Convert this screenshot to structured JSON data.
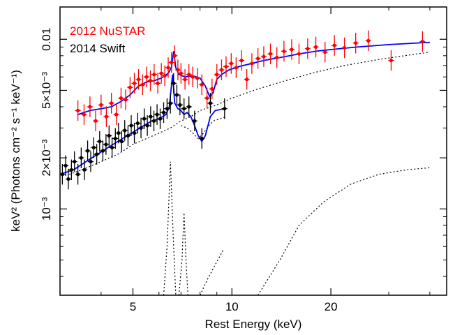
{
  "chart_data": {
    "type": "scatter",
    "title": "",
    "xlabel": "Rest Energy (keV)",
    "ylabel": "keV² (Photons cm⁻² s⁻¹ keV⁻¹)",
    "x_scale": "log",
    "y_scale": "log",
    "xlim": [
      3.0,
      45.0
    ],
    "ylim": [
      0.00031,
      0.0155
    ],
    "x_ticks": [
      {
        "value": 5,
        "label": "5"
      },
      {
        "value": 10,
        "label": "10"
      },
      {
        "value": 20,
        "label": "20"
      }
    ],
    "y_ticks": [
      {
        "value": 0.001,
        "label": "10⁻³"
      },
      {
        "value": 0.002,
        "label": "2×10⁻³"
      },
      {
        "value": 0.005,
        "label": "5×10⁻³"
      },
      {
        "value": 0.01,
        "label": "0.01"
      }
    ],
    "legend": {
      "placement": "top-left",
      "entries": [
        {
          "label": "2012 NuSTAR",
          "color": "#ff0000"
        },
        {
          "label": "2014 Swift",
          "color": "#000000"
        }
      ]
    },
    "series": [
      {
        "name": "2012 NuSTAR",
        "color": "#ff0000",
        "kind": "data",
        "points": [
          [
            3.4,
            0.0038
          ],
          [
            3.55,
            0.0036
          ],
          [
            3.7,
            0.004
          ],
          [
            3.85,
            0.0033
          ],
          [
            4.0,
            0.0041
          ],
          [
            4.15,
            0.0035
          ],
          [
            4.3,
            0.0042
          ],
          [
            4.45,
            0.0036
          ],
          [
            4.6,
            0.0045
          ],
          [
            4.75,
            0.0044
          ],
          [
            4.9,
            0.0052
          ],
          [
            5.05,
            0.0055
          ],
          [
            5.2,
            0.0058
          ],
          [
            5.35,
            0.0054
          ],
          [
            5.5,
            0.006
          ],
          [
            5.65,
            0.0057
          ],
          [
            5.8,
            0.0062
          ],
          [
            5.95,
            0.0055
          ],
          [
            6.1,
            0.0063
          ],
          [
            6.25,
            0.0061
          ],
          [
            6.4,
            0.0068
          ],
          [
            6.55,
            0.0073
          ],
          [
            6.7,
            0.008
          ],
          [
            6.85,
            0.0066
          ],
          [
            7.0,
            0.0063
          ],
          [
            7.2,
            0.0058
          ],
          [
            7.4,
            0.0062
          ],
          [
            7.6,
            0.006
          ],
          [
            7.85,
            0.0059
          ],
          [
            8.1,
            0.0054
          ],
          [
            8.4,
            0.0045
          ],
          [
            8.7,
            0.0051
          ],
          [
            9.0,
            0.0062
          ],
          [
            9.3,
            0.0066
          ],
          [
            9.6,
            0.0069
          ],
          [
            9.95,
            0.0072
          ],
          [
            10.3,
            0.0068
          ],
          [
            10.7,
            0.0075
          ],
          [
            11.1,
            0.0058
          ],
          [
            11.5,
            0.0072
          ],
          [
            12.0,
            0.0077
          ],
          [
            12.5,
            0.0079
          ],
          [
            13.1,
            0.0082
          ],
          [
            13.7,
            0.0078
          ],
          [
            14.4,
            0.0085
          ],
          [
            15.2,
            0.0087
          ],
          [
            16.0,
            0.0082
          ],
          [
            17.0,
            0.0088
          ],
          [
            18.0,
            0.009
          ],
          [
            19.2,
            0.0084
          ],
          [
            20.5,
            0.0092
          ],
          [
            22.0,
            0.0089
          ],
          [
            23.8,
            0.0095
          ],
          [
            26.0,
            0.0098
          ],
          [
            30.5,
            0.0075
          ],
          [
            38.0,
            0.0097
          ]
        ]
      },
      {
        "name": "2014 Swift",
        "color": "#000000",
        "kind": "data",
        "points": [
          [
            3.05,
            0.0016
          ],
          [
            3.12,
            0.0018
          ],
          [
            3.18,
            0.0015
          ],
          [
            3.25,
            0.0017
          ],
          [
            3.32,
            0.0019
          ],
          [
            3.4,
            0.0016
          ],
          [
            3.48,
            0.002
          ],
          [
            3.56,
            0.0017
          ],
          [
            3.64,
            0.0022
          ],
          [
            3.72,
            0.0019
          ],
          [
            3.8,
            0.0023
          ],
          [
            3.88,
            0.0021
          ],
          [
            3.96,
            0.0025
          ],
          [
            4.05,
            0.0022
          ],
          [
            4.14,
            0.0024
          ],
          [
            4.23,
            0.0027
          ],
          [
            4.32,
            0.0023
          ],
          [
            4.42,
            0.0026
          ],
          [
            4.52,
            0.0028
          ],
          [
            4.62,
            0.0025
          ],
          [
            4.72,
            0.0029
          ],
          [
            4.83,
            0.0027
          ],
          [
            4.94,
            0.0031
          ],
          [
            5.05,
            0.0028
          ],
          [
            5.17,
            0.0032
          ],
          [
            5.29,
            0.003
          ],
          [
            5.41,
            0.0034
          ],
          [
            5.53,
            0.0031
          ],
          [
            5.66,
            0.0035
          ],
          [
            5.79,
            0.0033
          ],
          [
            5.92,
            0.0036
          ],
          [
            6.05,
            0.0034
          ],
          [
            6.2,
            0.0037
          ],
          [
            6.35,
            0.0039
          ],
          [
            6.5,
            0.0042
          ],
          [
            6.65,
            0.0055
          ],
          [
            6.8,
            0.0047
          ],
          [
            6.95,
            0.0041
          ],
          [
            7.15,
            0.0039
          ],
          [
            7.4,
            0.004
          ],
          [
            7.7,
            0.0033
          ],
          [
            8.1,
            0.0026
          ],
          [
            8.6,
            0.0042
          ],
          [
            9.5,
            0.0039
          ]
        ]
      },
      {
        "name": "",
        "color": "#0000ff",
        "kind": "model",
        "points": [
          [
            3.0,
            0.0016
          ],
          [
            3.3,
            0.0017
          ],
          [
            3.6,
            0.0019
          ],
          [
            3.9,
            0.0021
          ],
          [
            4.2,
            0.0023
          ],
          [
            4.5,
            0.0025
          ],
          [
            4.8,
            0.0027
          ],
          [
            5.1,
            0.0029
          ],
          [
            5.4,
            0.0031
          ],
          [
            5.7,
            0.0033
          ],
          [
            6.0,
            0.0034
          ],
          [
            6.3,
            0.0036
          ],
          [
            6.45,
            0.004
          ],
          [
            6.6,
            0.0062
          ],
          [
            6.7,
            0.0042
          ],
          [
            6.85,
            0.0039
          ],
          [
            7.0,
            0.0038
          ],
          [
            7.15,
            0.0036
          ],
          [
            7.3,
            0.0037
          ],
          [
            7.5,
            0.0035
          ],
          [
            7.7,
            0.0031
          ],
          [
            7.9,
            0.0027
          ],
          [
            8.1,
            0.0025
          ],
          [
            8.3,
            0.0027
          ],
          [
            8.6,
            0.0035
          ],
          [
            8.9,
            0.0038
          ],
          [
            9.5,
            0.0039
          ]
        ]
      },
      {
        "name": "",
        "color": "#0000ff",
        "kind": "model",
        "points": [
          [
            3.4,
            0.0036
          ],
          [
            3.7,
            0.0038
          ],
          [
            4.0,
            0.0039
          ],
          [
            4.3,
            0.004
          ],
          [
            4.6,
            0.0043
          ],
          [
            4.9,
            0.0047
          ],
          [
            5.2,
            0.0053
          ],
          [
            5.5,
            0.0056
          ],
          [
            5.8,
            0.0057
          ],
          [
            6.1,
            0.0059
          ],
          [
            6.4,
            0.0063
          ],
          [
            6.55,
            0.0068
          ],
          [
            6.65,
            0.0085
          ],
          [
            6.75,
            0.0068
          ],
          [
            6.9,
            0.0062
          ],
          [
            7.2,
            0.006
          ],
          [
            7.6,
            0.0061
          ],
          [
            8.0,
            0.0059
          ],
          [
            8.3,
            0.0053
          ],
          [
            8.55,
            0.0046
          ],
          [
            8.75,
            0.0048
          ],
          [
            9.0,
            0.0058
          ],
          [
            9.3,
            0.0062
          ],
          [
            9.8,
            0.0066
          ],
          [
            10.5,
            0.0069
          ],
          [
            11.5,
            0.0072
          ],
          [
            12.5,
            0.0075
          ],
          [
            14.0,
            0.0078
          ],
          [
            16.0,
            0.0082
          ],
          [
            18.0,
            0.0085
          ],
          [
            20.0,
            0.0087
          ],
          [
            24.0,
            0.009
          ],
          [
            30.0,
            0.0093
          ],
          [
            40.0,
            0.0096
          ]
        ]
      },
      {
        "name": "",
        "color": "#000000",
        "kind": "component",
        "points": [
          [
            3.2,
            0.0016
          ],
          [
            3.5,
            0.0017
          ],
          [
            4.0,
            0.0019
          ],
          [
            4.5,
            0.0021
          ],
          [
            5.0,
            0.0024
          ],
          [
            5.5,
            0.0026
          ],
          [
            6.0,
            0.0028
          ],
          [
            6.5,
            0.003
          ],
          [
            7.0,
            0.0033
          ],
          [
            7.5,
            0.0035
          ],
          [
            8.0,
            0.0038
          ],
          [
            9.0,
            0.0041
          ],
          [
            10.0,
            0.0045
          ],
          [
            12.0,
            0.0051
          ],
          [
            15.0,
            0.0058
          ],
          [
            18.0,
            0.0064
          ],
          [
            22.0,
            0.007
          ],
          [
            28.0,
            0.0076
          ],
          [
            35.0,
            0.0081
          ],
          [
            40.0,
            0.0084
          ]
        ]
      },
      {
        "name": "",
        "color": "#000000",
        "kind": "component",
        "points": [
          [
            7.0,
            0.0031
          ],
          [
            7.3,
            0.003
          ],
          [
            7.6,
            0.0028
          ],
          [
            7.9,
            0.0026
          ],
          [
            8.2,
            0.0028
          ],
          [
            8.5,
            0.0031
          ],
          [
            8.8,
            0.0033
          ],
          [
            9.2,
            0.0034
          ],
          [
            9.6,
            0.0035
          ]
        ]
      },
      {
        "name": "",
        "color": "#000000",
        "kind": "component",
        "points": [
          [
            6.2,
            0.00031
          ],
          [
            6.35,
            0.0006
          ],
          [
            6.45,
            0.0013
          ],
          [
            6.5,
            0.0019
          ],
          [
            6.55,
            0.0013
          ],
          [
            6.65,
            0.0006
          ],
          [
            6.75,
            0.00031
          ]
        ]
      },
      {
        "name": "",
        "color": "#000000",
        "kind": "component",
        "points": [
          [
            6.9,
            0.00031
          ],
          [
            7.05,
            0.0005
          ],
          [
            7.15,
            0.00095
          ],
          [
            7.25,
            0.0005
          ],
          [
            7.35,
            0.00031
          ]
        ]
      },
      {
        "name": "",
        "color": "#000000",
        "kind": "component",
        "points": [
          [
            8.0,
            0.00031
          ],
          [
            8.4,
            0.00038
          ],
          [
            8.9,
            0.00047
          ],
          [
            9.4,
            0.00057
          ]
        ]
      },
      {
        "name": "",
        "color": "#000000",
        "kind": "component",
        "points": [
          [
            12.0,
            0.00031
          ],
          [
            14.0,
            0.0005
          ],
          [
            16.0,
            0.0008
          ],
          [
            19.0,
            0.0011
          ],
          [
            23.0,
            0.0014
          ],
          [
            28.0,
            0.0016
          ],
          [
            34.0,
            0.0017
          ],
          [
            40.0,
            0.00175
          ]
        ]
      }
    ]
  }
}
